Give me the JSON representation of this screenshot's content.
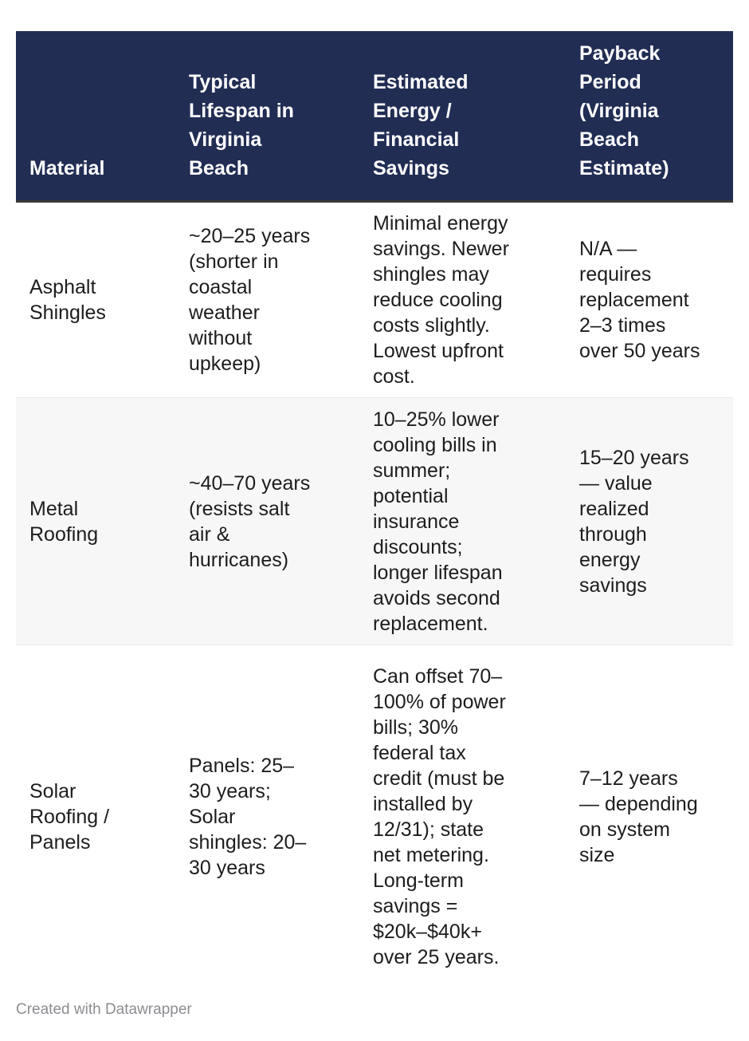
{
  "chart_data": {
    "type": "table",
    "columns": [
      "Material",
      "Typical Lifespan in Virginia Beach",
      "Estimated Energy / Financial Savings",
      "Payback Period (Virginia Beach Estimate)"
    ],
    "rows": [
      [
        "Asphalt Shingles",
        "~20–25 years (shorter in coastal weather without upkeep)",
        "Minimal energy savings. Newer shingles may reduce cooling costs slightly. Lowest upfront cost.",
        "N/A — requires replacement 2–3 times over 50 years"
      ],
      [
        "Metal Roofing",
        "~40–70 years (resists salt air & hurricanes)",
        "10–25% lower cooling bills in summer; potential insurance discounts; longer lifespan avoids second replacement.",
        "15–20 years — value realized through energy savings"
      ],
      [
        "Solar Roofing / Panels",
        "Panels: 25–30 years; Solar shingles: 20–30 years",
        "Can offset 70–100% of power bills; 30% federal tax credit (must be installed by 12/31); state net metering. Long-term savings = $20k–$40k+ over 25 years.",
        "7–12 years — depending on system size"
      ]
    ],
    "layout_hints": {
      "header_alignment": "bottom",
      "striped_rows": true,
      "striped_row_index": 1
    }
  },
  "footer": {
    "prefix": "Created with ",
    "link_label": "Datawrapper"
  },
  "colors": {
    "header_bg": "#222d54",
    "header_text": "#ffffff",
    "header_border": "#3a3a3a",
    "row_stripe": "#f7f7f7",
    "row_divider": "#e8e8e8",
    "body_text": "#1d1d1d",
    "attribution_text": "#8d8d92",
    "background": "#ffffff"
  }
}
